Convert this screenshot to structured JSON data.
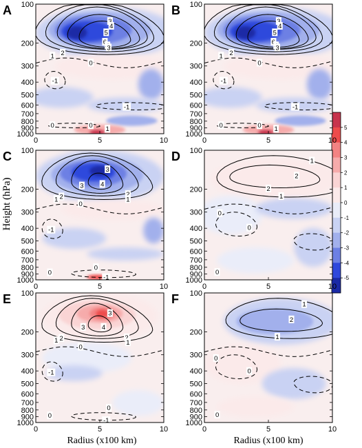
{
  "figure": {
    "ylabel": "Height (hPa)",
    "xlabel": "Radius (x100 km)"
  },
  "colorbar": {
    "levels": [
      "5",
      "4",
      "3",
      "2",
      "1",
      "0",
      "-1",
      "-2",
      "-3",
      "-4",
      "-5"
    ],
    "colors": [
      "#c8344d",
      "#ee4b4b",
      "#f38383",
      "#f6abab",
      "#fad4d4",
      "#fbeaea",
      "#e9ecf8",
      "#c9d2f3",
      "#a2b0ec",
      "#6d80e4",
      "#2f48dc",
      "#1a2aa6"
    ]
  },
  "chart_data": [
    {
      "type": "heatmap",
      "panel": "A",
      "x_ticks": [
        "0",
        "5",
        "10"
      ],
      "y_ticks": [
        "100",
        "200",
        "300",
        "400",
        "500",
        "600",
        "700",
        "800",
        "900",
        "1000"
      ],
      "xlim": [
        0,
        10
      ],
      "ylim": [
        1000,
        100
      ],
      "y_scale": "log",
      "contour_labels": [
        {
          "text": "3",
          "x": 5.8,
          "y": 135
        },
        {
          "text": "4",
          "x": 5.9,
          "y": 147
        },
        {
          "text": "5",
          "x": 5.5,
          "y": 165
        },
        {
          "text": "6",
          "x": 5.4,
          "y": 195
        },
        {
          "text": "4",
          "x": 5.6,
          "y": 208
        },
        {
          "text": "3",
          "x": 5.7,
          "y": 216
        },
        {
          "text": "2",
          "x": 2.1,
          "y": 237
        },
        {
          "text": "1",
          "x": 1.3,
          "y": 250
        },
        {
          "text": "0",
          "x": 4.3,
          "y": 283
        },
        {
          "text": "-1",
          "x": 1.5,
          "y": 390
        },
        {
          "text": "-1",
          "x": 7.1,
          "y": 620
        },
        {
          "text": "0",
          "x": 1.3,
          "y": 860
        },
        {
          "text": "0",
          "x": 4.3,
          "y": 860
        },
        {
          "text": "1",
          "x": 5.6,
          "y": 915
        }
      ]
    },
    {
      "type": "heatmap",
      "panel": "B",
      "x_ticks": [
        "0",
        "5",
        "10"
      ],
      "y_ticks": [
        "100",
        "200",
        "300",
        "400",
        "500",
        "600",
        "700",
        "800",
        "900",
        "1000"
      ],
      "xlim": [
        0,
        10
      ],
      "ylim": [
        1000,
        100
      ],
      "y_scale": "log",
      "contour_labels": [
        {
          "text": "3",
          "x": 5.8,
          "y": 135
        },
        {
          "text": "4",
          "x": 5.9,
          "y": 147
        },
        {
          "text": "5",
          "x": 5.5,
          "y": 165
        },
        {
          "text": "6",
          "x": 5.4,
          "y": 195
        },
        {
          "text": "4",
          "x": 5.6,
          "y": 208
        },
        {
          "text": "3",
          "x": 5.7,
          "y": 216
        },
        {
          "text": "2",
          "x": 2.1,
          "y": 237
        },
        {
          "text": "1",
          "x": 1.3,
          "y": 250
        },
        {
          "text": "0",
          "x": 4.3,
          "y": 283
        },
        {
          "text": "-1",
          "x": 1.5,
          "y": 390
        },
        {
          "text": "-1",
          "x": 7.1,
          "y": 620
        },
        {
          "text": "0",
          "x": 1.3,
          "y": 860
        },
        {
          "text": "0",
          "x": 4.3,
          "y": 860
        },
        {
          "text": "1",
          "x": 5.6,
          "y": 915
        }
      ]
    },
    {
      "type": "heatmap",
      "panel": "C",
      "x_ticks": [
        "0",
        "5",
        "10"
      ],
      "y_ticks": [
        "100",
        "200",
        "300",
        "400",
        "500",
        "600",
        "700",
        "800",
        "900",
        "1000"
      ],
      "xlim": [
        0,
        10
      ],
      "ylim": [
        1000,
        100
      ],
      "y_scale": "log",
      "contour_labels": [
        {
          "text": "3",
          "x": 5.6,
          "y": 140
        },
        {
          "text": "3",
          "x": 3.6,
          "y": 187
        },
        {
          "text": "4",
          "x": 5.2,
          "y": 182
        },
        {
          "text": "2",
          "x": 7.2,
          "y": 218
        },
        {
          "text": "1",
          "x": 7.2,
          "y": 238
        },
        {
          "text": "2",
          "x": 2.0,
          "y": 227
        },
        {
          "text": "1",
          "x": 1.6,
          "y": 238
        },
        {
          "text": "0",
          "x": 3.5,
          "y": 258
        },
        {
          "text": "-1",
          "x": 1.2,
          "y": 410
        },
        {
          "text": "0",
          "x": 4.7,
          "y": 800
        },
        {
          "text": "0",
          "x": 1.1,
          "y": 875
        },
        {
          "text": "-1",
          "x": 5.5,
          "y": 955
        }
      ]
    },
    {
      "type": "heatmap",
      "panel": "D",
      "x_ticks": [
        "0",
        "5",
        "10"
      ],
      "y_ticks": [
        "100",
        "200",
        "300",
        "400",
        "500",
        "600",
        "700",
        "800",
        "900",
        "1000"
      ],
      "xlim": [
        0,
        10
      ],
      "ylim": [
        1000,
        100
      ],
      "y_scale": "log",
      "contour_labels": [
        {
          "text": "1",
          "x": 8.4,
          "y": 120
        },
        {
          "text": "2",
          "x": 7.2,
          "y": 157
        },
        {
          "text": "2",
          "x": 5.0,
          "y": 197
        },
        {
          "text": "1",
          "x": 6.0,
          "y": 226
        },
        {
          "text": "0",
          "x": 1.2,
          "y": 305
        },
        {
          "text": "0",
          "x": 3.5,
          "y": 395
        },
        {
          "text": "0",
          "x": 1.0,
          "y": 870
        }
      ]
    },
    {
      "type": "heatmap",
      "panel": "E",
      "x_ticks": [
        "0",
        "5",
        "10"
      ],
      "y_ticks": [
        "100",
        "200",
        "300",
        "400",
        "500",
        "600",
        "700",
        "800",
        "900",
        "1000"
      ],
      "xlim": [
        0,
        10
      ],
      "ylim": [
        1000,
        100
      ],
      "y_scale": "log",
      "contour_labels": [
        {
          "text": "3",
          "x": 5.8,
          "y": 143
        },
        {
          "text": "3",
          "x": 3.7,
          "y": 183
        },
        {
          "text": "4",
          "x": 5.3,
          "y": 183
        },
        {
          "text": "2",
          "x": 7.1,
          "y": 220
        },
        {
          "text": "1",
          "x": 7.2,
          "y": 240
        },
        {
          "text": "2",
          "x": 2.0,
          "y": 223
        },
        {
          "text": "1",
          "x": 1.6,
          "y": 232
        },
        {
          "text": "0",
          "x": 3.5,
          "y": 260
        },
        {
          "text": "-1",
          "x": 1.2,
          "y": 410
        },
        {
          "text": "0",
          "x": 5.7,
          "y": 770
        },
        {
          "text": "0",
          "x": 1.1,
          "y": 880
        },
        {
          "text": "-1",
          "x": 5.5,
          "y": 960
        }
      ]
    },
    {
      "type": "heatmap",
      "panel": "F",
      "x_ticks": [
        "0",
        "5",
        "10"
      ],
      "y_ticks": [
        "100",
        "200",
        "300",
        "400",
        "500",
        "600",
        "700",
        "800",
        "900",
        "1000"
      ],
      "xlim": [
        0,
        10
      ],
      "ylim": [
        1000,
        100
      ],
      "y_scale": "log",
      "contour_labels": [
        {
          "text": "1",
          "x": 7.8,
          "y": 122
        },
        {
          "text": "2",
          "x": 6.8,
          "y": 160
        },
        {
          "text": "1",
          "x": 5.7,
          "y": 218
        },
        {
          "text": "0",
          "x": 0.9,
          "y": 318
        },
        {
          "text": "0",
          "x": 3.5,
          "y": 400
        },
        {
          "text": "0",
          "x": 1.0,
          "y": 870
        }
      ]
    }
  ]
}
